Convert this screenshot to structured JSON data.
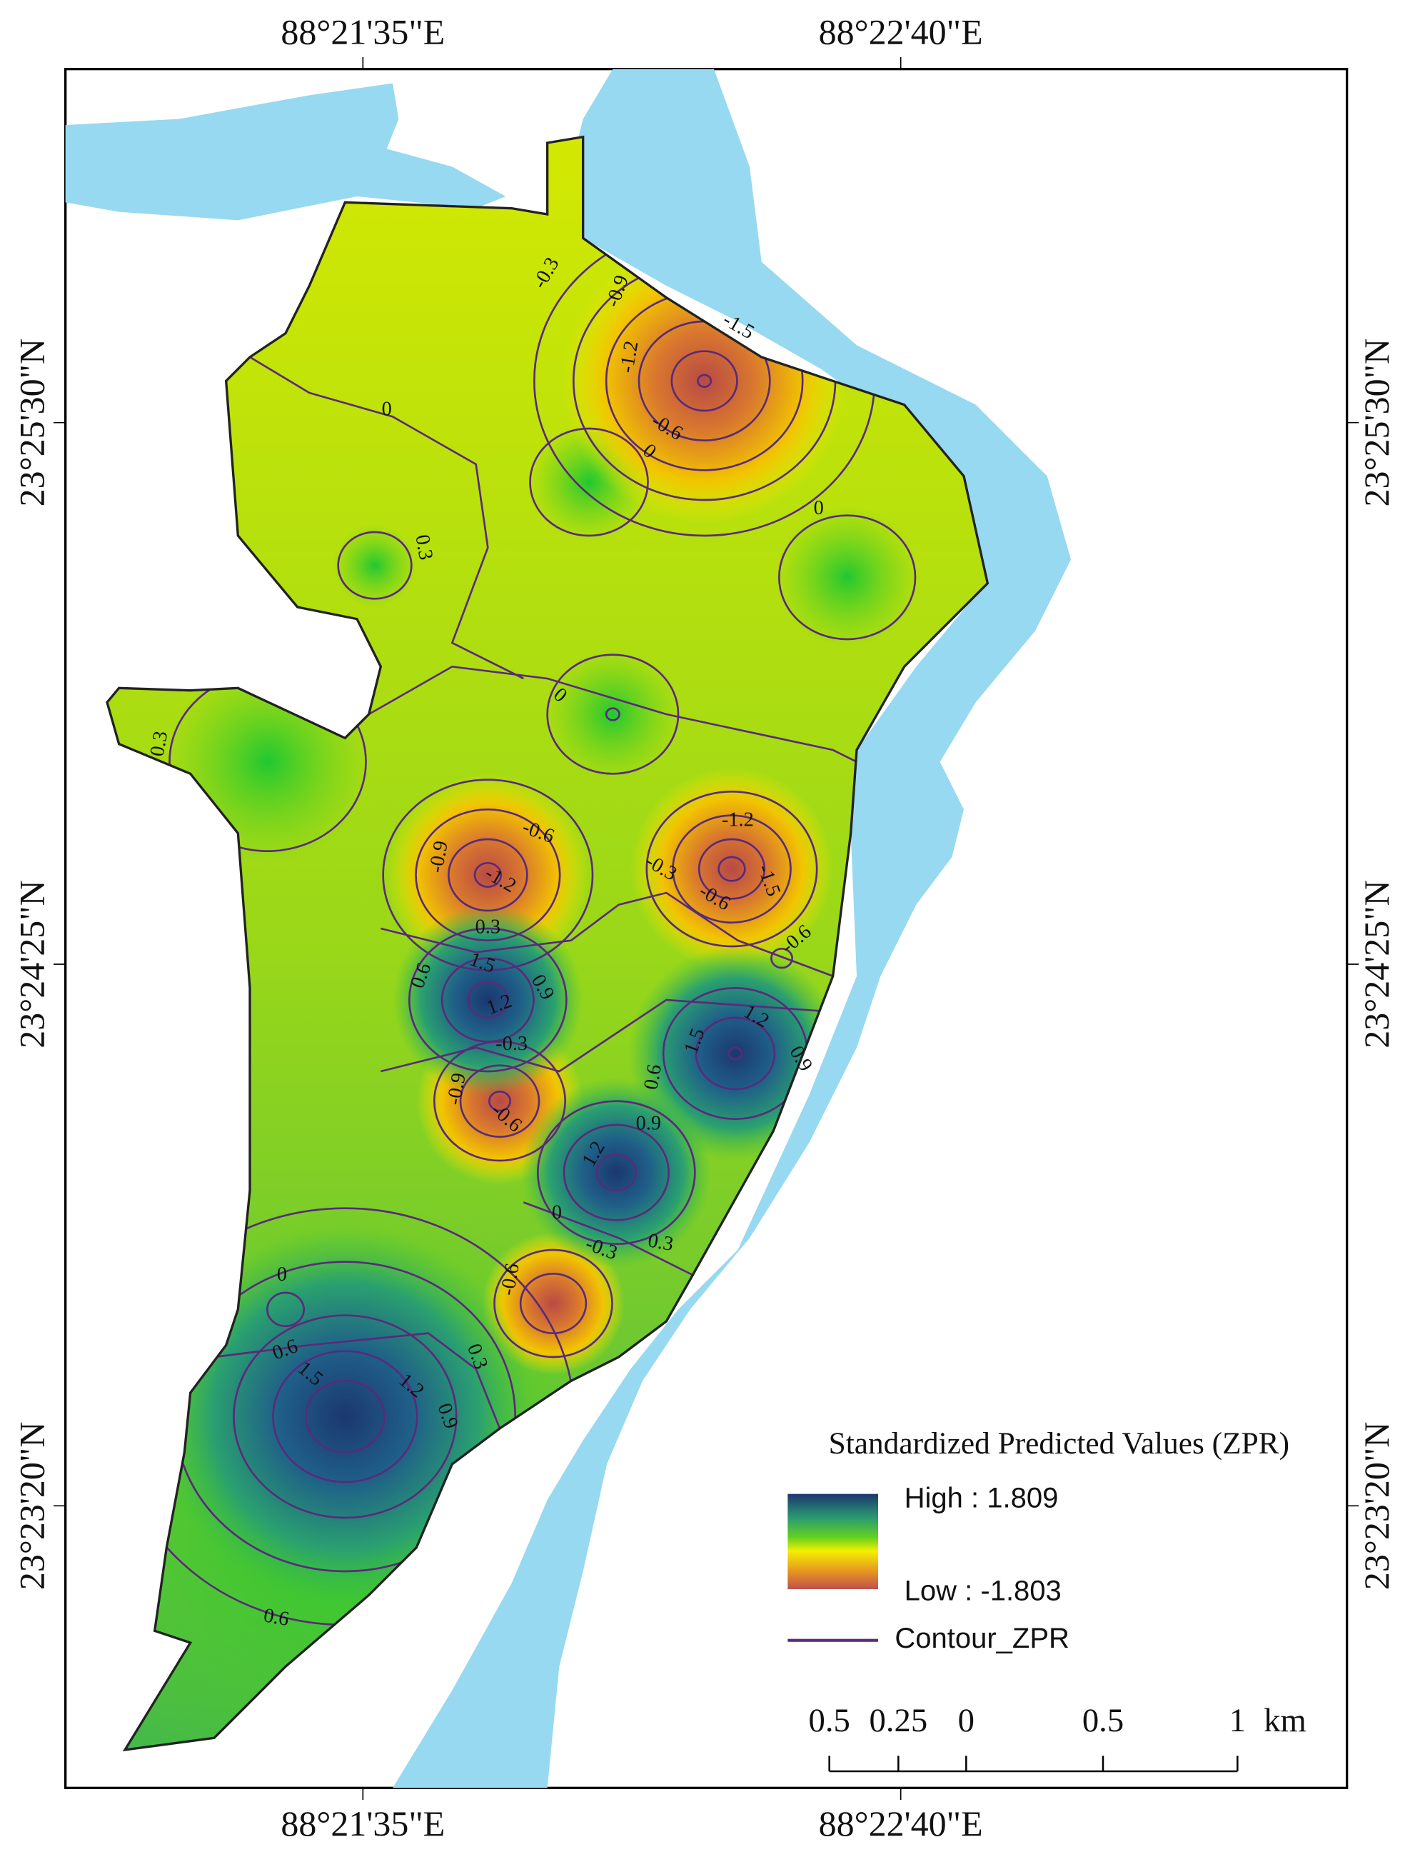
{
  "map": {
    "axes": {
      "top": [
        "88°21'35\"E",
        "88°22'40\"E"
      ],
      "bottom": [
        "88°21'35\"E",
        "88°22'40\"E"
      ],
      "left": [
        "23°25'30\"N",
        "23°24'25\"N",
        "23°23'20\"N"
      ],
      "right": [
        "23°25'30\"N",
        "23°24'25\"N",
        "23°23'20\"N"
      ]
    },
    "contour_labels": [
      "-0.3",
      "-0.9",
      "-1.5",
      "-1.2",
      "-0.6",
      "0",
      "0",
      "0.3",
      "0",
      "0",
      "0.3",
      "-0.6",
      "-0.9",
      "-1.2",
      "-1.2",
      "-0.3",
      "-0.6",
      "-1.5",
      "-0.6",
      "0.3",
      "1.5",
      "0.6",
      "0.9",
      "1.2",
      "-0.3",
      "1.2",
      "0.9",
      "1.5",
      "0.6",
      "-0.9",
      "-0.6",
      "0.9",
      "1.2",
      "0",
      "-0.3",
      "0.3",
      "-0.6",
      "0",
      "0.6",
      "1.5",
      "1.2",
      "0.9",
      "0.3",
      "0.6"
    ],
    "legend": {
      "title": "Standardized Predicted Values (ZPR)",
      "high": "High : 1.809",
      "low": "Low : -1.803",
      "contour": "Contour_ZPR"
    },
    "scale_bar": {
      "labels": [
        "0.5",
        "0.25",
        "0",
        "0.5",
        "1"
      ],
      "unit": "km"
    }
  }
}
